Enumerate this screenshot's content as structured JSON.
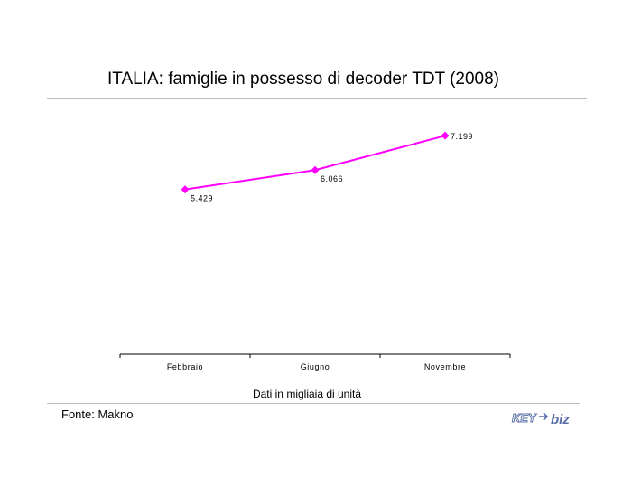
{
  "chart_data": {
    "type": "line",
    "title": "ITALIA: famiglie in possesso di decoder TDT (2008)",
    "categories": [
      "Febbraio",
      "Giugno",
      "Novembre"
    ],
    "series": [
      {
        "values": [
          5429,
          6066,
          7199
        ],
        "labels": [
          "5.429",
          "6.066",
          "7.199"
        ],
        "color": "#ff00ff"
      }
    ],
    "ylim": [
      0,
      7800
    ],
    "grid": false,
    "note": "Dati in migliaia di unità"
  },
  "footer": {
    "source": "Fonte: Makno",
    "logo_text_left": "KEY",
    "logo_text_right": "biz"
  },
  "colors": {
    "line": "#ff00ff",
    "rule": "#bdbdbd",
    "logo": "#5a6fa8"
  }
}
